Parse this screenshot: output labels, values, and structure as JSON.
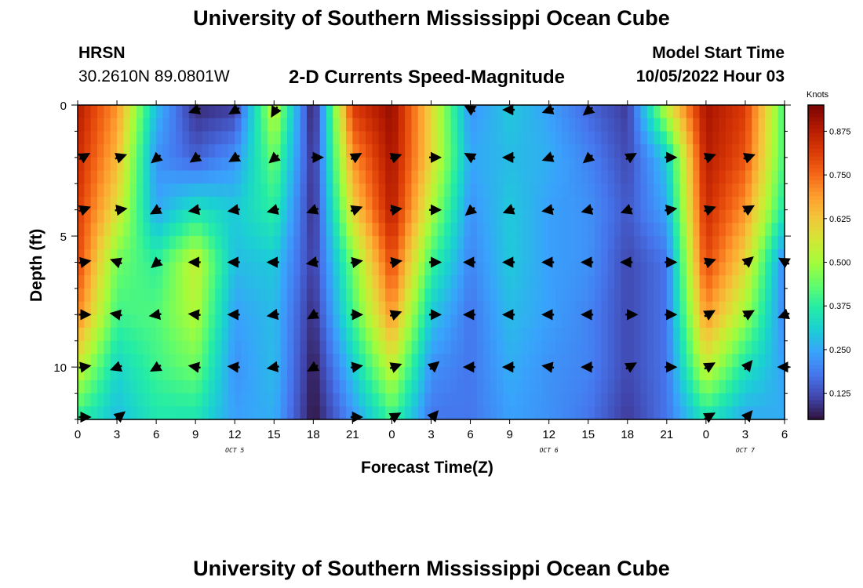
{
  "header": {
    "title": "University of Southern Mississippi Ocean Cube",
    "station": "HRSN",
    "coords": "30.2610N  89.0801W",
    "subtitle": "2-D Currents Speed-Magnitude",
    "model_label": "Model Start Time",
    "model_time": "10/05/2022 Hour 03"
  },
  "footer": {
    "title": "University of Southern Mississippi Ocean Cube"
  },
  "chart_data": {
    "type": "heatmap",
    "title": "2-D Currents Speed-Magnitude",
    "xlabel": "Forecast Time(Z)",
    "ylabel": "Depth (ft)",
    "x_tick_labels": [
      "0",
      "3",
      "6",
      "9",
      "12",
      "15",
      "18",
      "21",
      "0",
      "3",
      "6",
      "9",
      "12",
      "15",
      "18",
      "21",
      "0",
      "3",
      "6"
    ],
    "x_range_hours": [
      0,
      54
    ],
    "date_labels": [
      {
        "label": "OCT 5",
        "hour": 12
      },
      {
        "label": "OCT 6",
        "hour": 36
      },
      {
        "label": "OCT 7",
        "hour": 51
      }
    ],
    "y_tick_labels": [
      "0",
      "5",
      "10"
    ],
    "y_ticks": [
      0,
      5,
      10
    ],
    "y_range_ft": [
      0,
      12
    ],
    "colorbar": {
      "unit": "Knots",
      "range": [
        0.05,
        0.95
      ],
      "tick_labels": [
        "0.875",
        "0.750",
        "0.625",
        "0.500",
        "0.375",
        "0.250",
        "0.125"
      ],
      "ticks": [
        0.875,
        0.75,
        0.625,
        0.5,
        0.375,
        0.25,
        0.125
      ]
    },
    "colormap": [
      "#30123b",
      "#4145ab",
      "#4675ed",
      "#39a2fc",
      "#1bcfd4",
      "#24eca6",
      "#61fc6c",
      "#a4fc3b",
      "#d1e834",
      "#f3c63a",
      "#fe9b2d",
      "#f36315",
      "#d93806",
      "#b11901",
      "#7a0402"
    ],
    "depths_ft": [
      0,
      2,
      4,
      6,
      8,
      10,
      12
    ],
    "hours": [
      0,
      3,
      6,
      9,
      12,
      15,
      18,
      21,
      24,
      27,
      30,
      33,
      36,
      39,
      42,
      45,
      48,
      51,
      54
    ],
    "speed_knots": [
      [
        0.88,
        0.7,
        0.28,
        0.08,
        0.1,
        0.55,
        0.05,
        0.82,
        0.92,
        0.6,
        0.22,
        0.3,
        0.24,
        0.16,
        0.1,
        0.55,
        0.9,
        0.82,
        0.4
      ],
      [
        0.85,
        0.65,
        0.22,
        0.15,
        0.22,
        0.45,
        0.08,
        0.7,
        0.9,
        0.6,
        0.25,
        0.28,
        0.26,
        0.2,
        0.12,
        0.3,
        0.88,
        0.78,
        0.4
      ],
      [
        0.82,
        0.58,
        0.25,
        0.35,
        0.3,
        0.38,
        0.08,
        0.6,
        0.88,
        0.52,
        0.22,
        0.3,
        0.24,
        0.22,
        0.14,
        0.25,
        0.85,
        0.7,
        0.35
      ],
      [
        0.8,
        0.45,
        0.38,
        0.55,
        0.28,
        0.3,
        0.1,
        0.45,
        0.8,
        0.4,
        0.2,
        0.3,
        0.24,
        0.22,
        0.12,
        0.18,
        0.8,
        0.6,
        0.2
      ],
      [
        0.72,
        0.4,
        0.42,
        0.52,
        0.24,
        0.28,
        0.08,
        0.4,
        0.7,
        0.3,
        0.18,
        0.28,
        0.24,
        0.2,
        0.12,
        0.18,
        0.7,
        0.5,
        0.2
      ],
      [
        0.55,
        0.32,
        0.4,
        0.45,
        0.22,
        0.28,
        0.06,
        0.3,
        0.55,
        0.22,
        0.18,
        0.26,
        0.22,
        0.2,
        0.12,
        0.18,
        0.55,
        0.35,
        0.24
      ],
      [
        0.38,
        0.28,
        0.36,
        0.35,
        0.24,
        0.26,
        0.05,
        0.22,
        0.4,
        0.18,
        0.18,
        0.24,
        0.22,
        0.18,
        0.1,
        0.18,
        0.35,
        0.25,
        0.26
      ]
    ],
    "arrow_dir_deg": [
      [
        null,
        null,
        null,
        200,
        210,
        240,
        null,
        null,
        null,
        null,
        150,
        180,
        200,
        220,
        null,
        null,
        null,
        null,
        null
      ],
      [
        30,
        20,
        220,
        215,
        210,
        220,
        0,
        30,
        20,
        0,
        150,
        180,
        200,
        220,
        30,
        0,
        20,
        20,
        null
      ],
      [
        20,
        10,
        210,
        190,
        190,
        195,
        200,
        20,
        10,
        0,
        220,
        200,
        190,
        195,
        200,
        10,
        20,
        30,
        null
      ],
      [
        10,
        160,
        220,
        180,
        180,
        180,
        190,
        10,
        10,
        0,
        180,
        180,
        180,
        180,
        180,
        0,
        20,
        40,
        150
      ],
      [
        0,
        170,
        190,
        175,
        180,
        190,
        210,
        0,
        20,
        0,
        180,
        180,
        180,
        180,
        0,
        0,
        30,
        30,
        200
      ],
      [
        10,
        200,
        210,
        170,
        175,
        190,
        210,
        10,
        20,
        40,
        180,
        180,
        170,
        180,
        30,
        0,
        30,
        50,
        180
      ],
      [
        0,
        40,
        null,
        null,
        null,
        null,
        null,
        0,
        30,
        50,
        null,
        null,
        null,
        null,
        null,
        null,
        30,
        50,
        null
      ]
    ]
  }
}
